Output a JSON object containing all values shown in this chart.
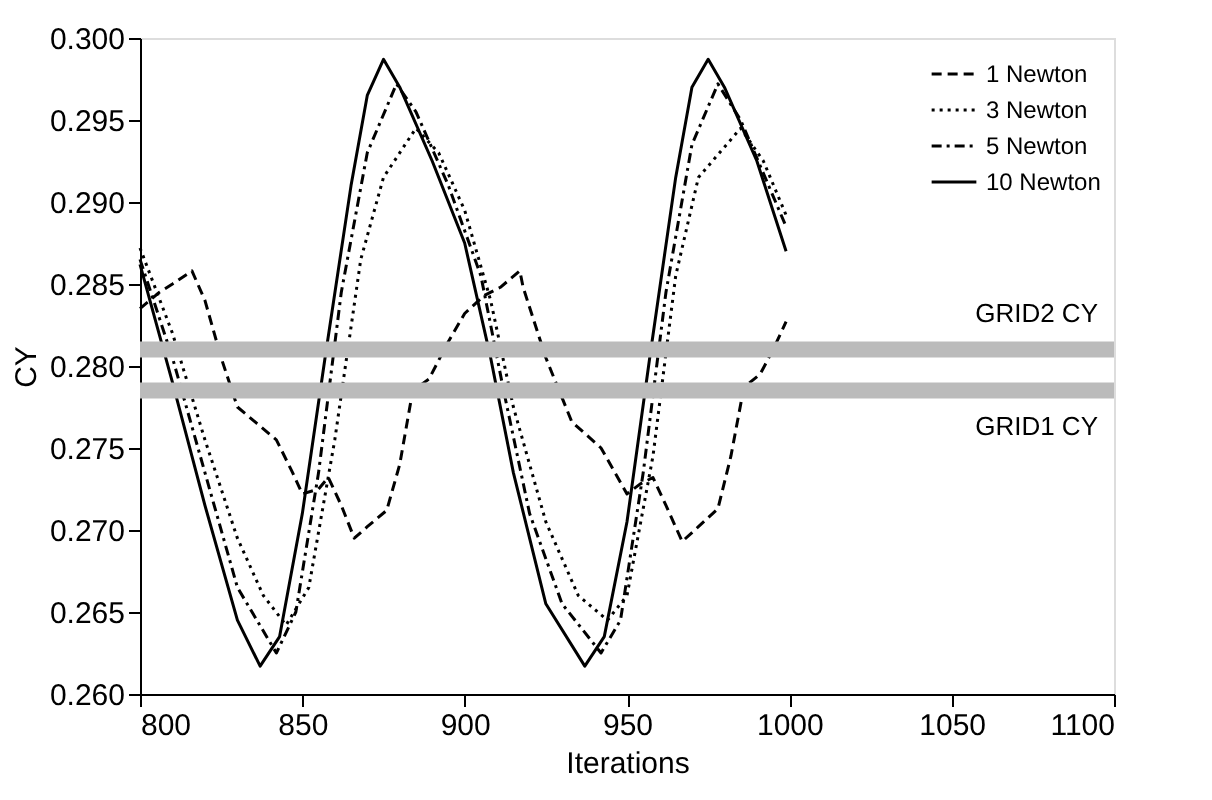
{
  "chart_data": {
    "type": "line",
    "xlabel": "Iterations",
    "ylabel": "CY",
    "xlim": [
      800,
      1100
    ],
    "xticks": [
      800,
      850,
      900,
      950,
      1000,
      1050,
      1100
    ],
    "ylim": [
      0.26,
      0.3
    ],
    "yticks": [
      {
        "value": 0.26,
        "label": "0.260"
      },
      {
        "value": 0.265,
        "label": "0.265"
      },
      {
        "value": 0.27,
        "label": "0.270"
      },
      {
        "value": 0.275,
        "label": "0.275"
      },
      {
        "value": 0.28,
        "label": "0.280"
      },
      {
        "value": 0.285,
        "label": "0.285"
      },
      {
        "value": 0.29,
        "label": "0.290"
      },
      {
        "value": 0.295,
        "label": "0.295"
      },
      {
        "value": 0.3,
        "label": "0.300"
      }
    ],
    "grid": false,
    "legend": "top right",
    "marker": "none",
    "ref_lines": [
      {
        "axis": "y",
        "value": 0.281,
        "label": "GRID2 CY",
        "color": "#bbbbbb"
      },
      {
        "axis": "y",
        "value": 0.2785,
        "label": "GRID1 CY",
        "color": "#bbbbbb"
      }
    ],
    "series": [
      {
        "name": "1 Newton",
        "color": "#000000",
        "line_style": "dashed",
        "x": [
          800,
          806,
          810,
          816,
          820,
          825,
          830,
          836,
          842,
          847,
          850,
          855,
          858,
          862,
          866,
          870,
          876,
          880,
          884,
          889,
          895,
          900,
          906,
          911,
          917,
          918,
          925,
          933,
          942,
          950,
          954,
          958,
          962,
          967,
          972,
          978,
          982,
          986,
          991,
          995,
          999
        ],
        "values": [
          0.2835,
          0.2845,
          0.285,
          0.2858,
          0.284,
          0.2805,
          0.2775,
          0.2765,
          0.2755,
          0.2735,
          0.2722,
          0.2725,
          0.2732,
          0.2715,
          0.2695,
          0.2702,
          0.2712,
          0.274,
          0.2785,
          0.2792,
          0.2815,
          0.2832,
          0.2843,
          0.2848,
          0.2858,
          0.2848,
          0.2805,
          0.2766,
          0.275,
          0.2722,
          0.2728,
          0.2732,
          0.2715,
          0.2693,
          0.2702,
          0.2713,
          0.2745,
          0.2787,
          0.2795,
          0.281,
          0.2827
        ]
      },
      {
        "name": "3 Newton",
        "color": "#000000",
        "line_style": "dotted",
        "x": [
          800,
          810,
          820,
          830,
          838,
          845,
          852,
          860,
          868,
          875,
          885,
          892,
          900,
          908,
          915,
          925,
          935,
          944,
          950,
          958,
          965,
          972,
          985,
          992,
          999
        ],
        "values": [
          0.2872,
          0.282,
          0.2755,
          0.2695,
          0.266,
          0.2642,
          0.2665,
          0.2755,
          0.2865,
          0.2915,
          0.2945,
          0.293,
          0.2895,
          0.284,
          0.2775,
          0.2705,
          0.266,
          0.2645,
          0.266,
          0.2745,
          0.2855,
          0.2915,
          0.2945,
          0.2925,
          0.2892
        ]
      },
      {
        "name": "5 Newton",
        "color": "#000000",
        "line_style": "dashdot",
        "x": [
          800,
          810,
          820,
          830,
          842,
          848,
          855,
          862,
          870,
          879,
          885,
          895,
          905,
          912,
          920,
          930,
          942,
          948,
          955,
          962,
          970,
          978,
          985,
          999
        ],
        "values": [
          0.2865,
          0.2805,
          0.2735,
          0.2665,
          0.2625,
          0.265,
          0.2735,
          0.2845,
          0.293,
          0.2972,
          0.2955,
          0.291,
          0.2855,
          0.2785,
          0.271,
          0.2655,
          0.2625,
          0.2645,
          0.2735,
          0.2845,
          0.2935,
          0.2972,
          0.295,
          0.2885
        ]
      },
      {
        "name": "10 Newton",
        "color": "#000000",
        "line_style": "solid",
        "x": [
          800,
          810,
          820,
          830,
          837,
          843,
          850,
          857,
          865,
          870,
          875,
          880,
          890,
          900,
          908,
          915,
          925,
          937,
          943,
          950,
          957,
          965,
          970,
          975,
          980,
          990,
          999
        ],
        "values": [
          0.2862,
          0.279,
          0.2715,
          0.2645,
          0.2617,
          0.2635,
          0.271,
          0.2805,
          0.291,
          0.2965,
          0.2987,
          0.297,
          0.2925,
          0.2875,
          0.2805,
          0.2735,
          0.2655,
          0.2617,
          0.2635,
          0.2705,
          0.2805,
          0.2915,
          0.297,
          0.2987,
          0.297,
          0.2925,
          0.287
        ]
      }
    ]
  }
}
